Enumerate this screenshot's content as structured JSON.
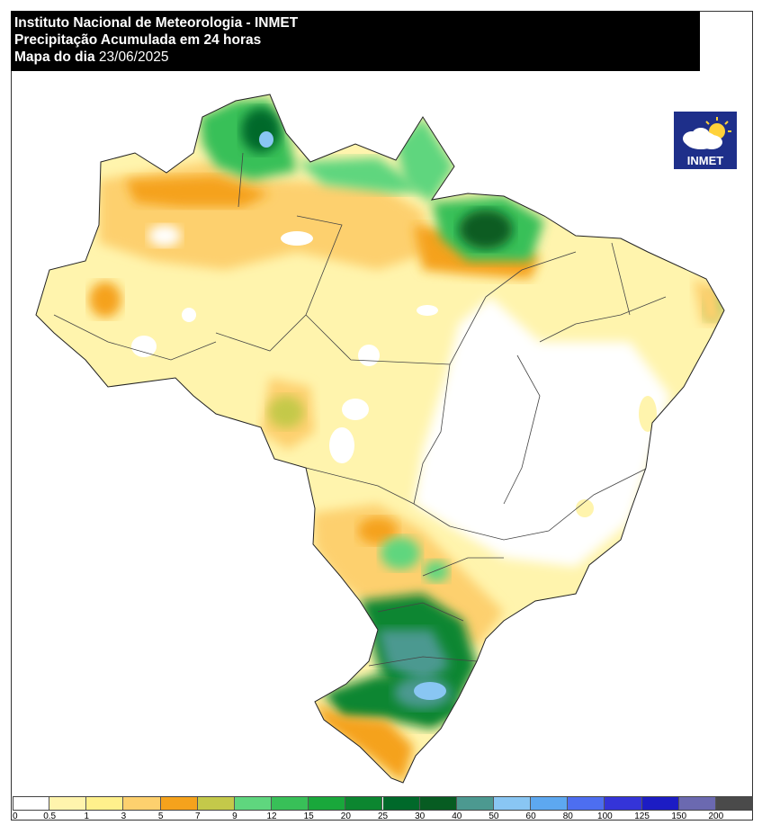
{
  "header": {
    "line1": "Instituto Nacional de Meteorologia - INMET",
    "line2": "Precipitação Acumulada em 24 horas",
    "line3_label": "Mapa do dia",
    "line3_date": "23/06/2025"
  },
  "logo": {
    "text": "INMET",
    "icon": "cloud-sun-icon",
    "bg_color": "#1e2f8a"
  },
  "legend": {
    "colors": [
      "#ffffff",
      "#fff4ad",
      "#fff08c",
      "#fdd06e",
      "#f5a21c",
      "#c4c94a",
      "#5fd67e",
      "#38c058",
      "#19a83b",
      "#0c8630",
      "#00692a",
      "#075c22",
      "#4c9990",
      "#89c6f3",
      "#5da8f0",
      "#4d6ef0",
      "#3434d8",
      "#1c1cc4",
      "#6b69b0",
      "#4a4a4a"
    ],
    "labels": [
      "0",
      "0.5",
      "1",
      "3",
      "5",
      "7",
      "9",
      "12",
      "15",
      "20",
      "25",
      "30",
      "40",
      "50",
      "60",
      "80",
      "100",
      "125",
      "150",
      "200"
    ]
  }
}
